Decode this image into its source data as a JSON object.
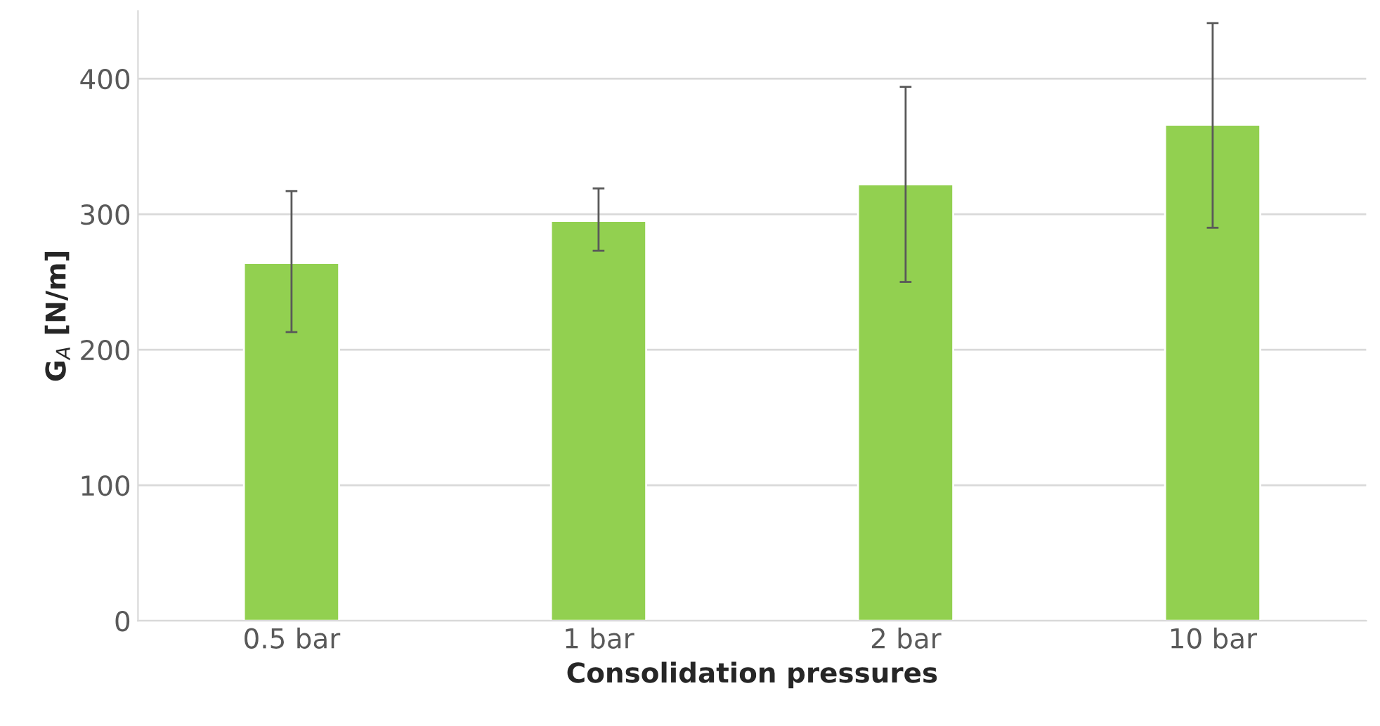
{
  "chart_data": {
    "type": "bar",
    "xlabel": "Consolidation pressures",
    "ylabel": "G$_{A}$ [N/m]",
    "categories": [
      "0.5 bar",
      "1 bar",
      "2 bar",
      "10 bar"
    ],
    "values": [
      264,
      295,
      322,
      366
    ],
    "errors": [
      [
        213,
        317
      ],
      [
        273,
        319
      ],
      [
        250,
        394
      ],
      [
        290,
        441
      ]
    ],
    "color": "#92d050",
    "ylim": [
      0,
      450
    ],
    "yticks": [
      0,
      100,
      200,
      300,
      400
    ],
    "grid": "y",
    "legend": false
  }
}
